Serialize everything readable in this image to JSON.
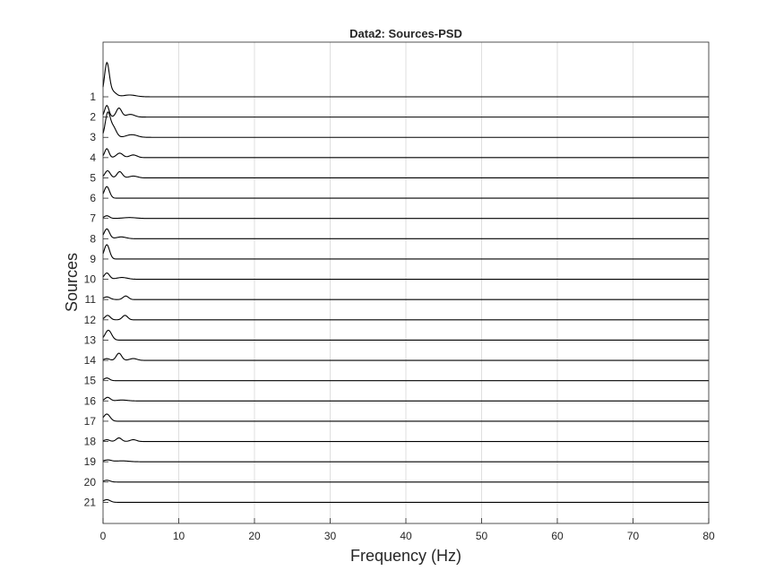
{
  "chart_data": {
    "type": "line",
    "title": "Data2: Sources-PSD",
    "xlabel": "Frequency (Hz)",
    "ylabel": "Sources",
    "xlim": [
      0,
      80
    ],
    "x_ticks": [
      "0",
      "10",
      "20",
      "30",
      "40",
      "50",
      "60",
      "70",
      "80"
    ],
    "y_ticks": [
      "1",
      "2",
      "3",
      "4",
      "5",
      "6",
      "7",
      "8",
      "9",
      "10",
      "11",
      "12",
      "13",
      "14",
      "15",
      "16",
      "17",
      "18",
      "19",
      "20",
      "21"
    ],
    "grid": "vertical",
    "legend": "none",
    "line_color": "#000000",
    "grid_color": "#dfdfdf",
    "series": [
      {
        "peaks": [
          [
            0.5,
            36,
            0.45
          ],
          [
            1.2,
            6,
            0.7
          ],
          [
            3.5,
            2,
            1.2
          ]
        ]
      },
      {
        "peaks": [
          [
            0.5,
            13,
            0.4
          ],
          [
            2.1,
            10,
            0.5
          ],
          [
            3.6,
            3,
            0.8
          ]
        ]
      },
      {
        "peaks": [
          [
            0.6,
            25,
            0.45
          ],
          [
            1.3,
            12,
            0.6
          ],
          [
            3.8,
            3,
            1.0
          ]
        ]
      },
      {
        "peaks": [
          [
            0.5,
            10,
            0.4
          ],
          [
            2.2,
            5,
            0.6
          ],
          [
            4.0,
            3,
            0.7
          ]
        ]
      },
      {
        "peaks": [
          [
            0.6,
            8,
            0.5
          ],
          [
            2.2,
            7,
            0.5
          ],
          [
            4.0,
            2,
            0.8
          ]
        ]
      },
      {
        "peaks": [
          [
            0.5,
            13,
            0.5
          ]
        ]
      },
      {
        "peaks": [
          [
            0.5,
            3,
            0.5
          ],
          [
            3.5,
            1,
            1.2
          ]
        ]
      },
      {
        "peaks": [
          [
            0.5,
            11,
            0.5
          ],
          [
            2.4,
            2,
            0.9
          ]
        ]
      },
      {
        "peaks": [
          [
            0.5,
            16,
            0.5
          ]
        ]
      },
      {
        "peaks": [
          [
            0.5,
            7,
            0.5
          ],
          [
            2.5,
            2,
            1.0
          ]
        ]
      },
      {
        "peaks": [
          [
            0.5,
            3,
            0.6
          ],
          [
            3.0,
            4,
            0.5
          ]
        ]
      },
      {
        "peaks": [
          [
            0.6,
            5,
            0.5
          ],
          [
            2.9,
            5,
            0.5
          ]
        ]
      },
      {
        "peaks": [
          [
            0.7,
            11,
            0.6
          ]
        ]
      },
      {
        "peaks": [
          [
            0.5,
            2,
            0.5
          ],
          [
            2.1,
            8,
            0.5
          ],
          [
            4.0,
            2,
            0.7
          ]
        ]
      },
      {
        "peaks": [
          [
            0.5,
            3,
            0.5
          ]
        ]
      },
      {
        "peaks": [
          [
            0.6,
            4,
            0.5
          ],
          [
            2.5,
            1,
            1.0
          ]
        ]
      },
      {
        "peaks": [
          [
            0.5,
            8,
            0.6
          ]
        ]
      },
      {
        "peaks": [
          [
            0.5,
            2,
            0.5
          ],
          [
            2.1,
            4,
            0.5
          ],
          [
            4.0,
            2,
            0.6
          ]
        ]
      },
      {
        "peaks": [
          [
            0.6,
            2,
            0.7
          ],
          [
            2.5,
            1,
            1.2
          ]
        ]
      },
      {
        "peaks": [
          [
            0.5,
            2,
            0.6
          ]
        ]
      },
      {
        "peaks": [
          [
            0.5,
            3,
            0.6
          ]
        ]
      }
    ]
  }
}
